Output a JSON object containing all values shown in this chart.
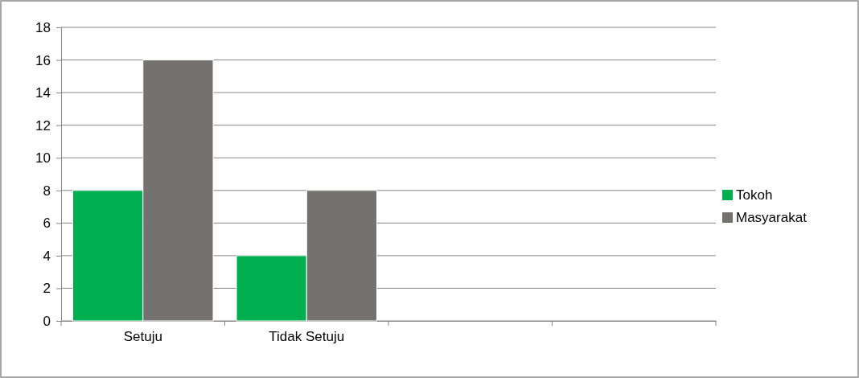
{
  "chart_data": {
    "type": "bar",
    "categories": [
      "Setuju",
      "Tidak Setuju",
      null,
      null
    ],
    "series": [
      {
        "name": "Tokoh",
        "color": "#00b050",
        "values": [
          8,
          4,
          null,
          null
        ]
      },
      {
        "name": "Masyarakat",
        "color": "#767171",
        "values": [
          16,
          8,
          null,
          null
        ]
      }
    ],
    "ylim": [
      0,
      18
    ],
    "yticks": [
      0,
      2,
      4,
      6,
      8,
      10,
      12,
      14,
      16,
      18
    ],
    "grid": "y",
    "legend": "right"
  }
}
